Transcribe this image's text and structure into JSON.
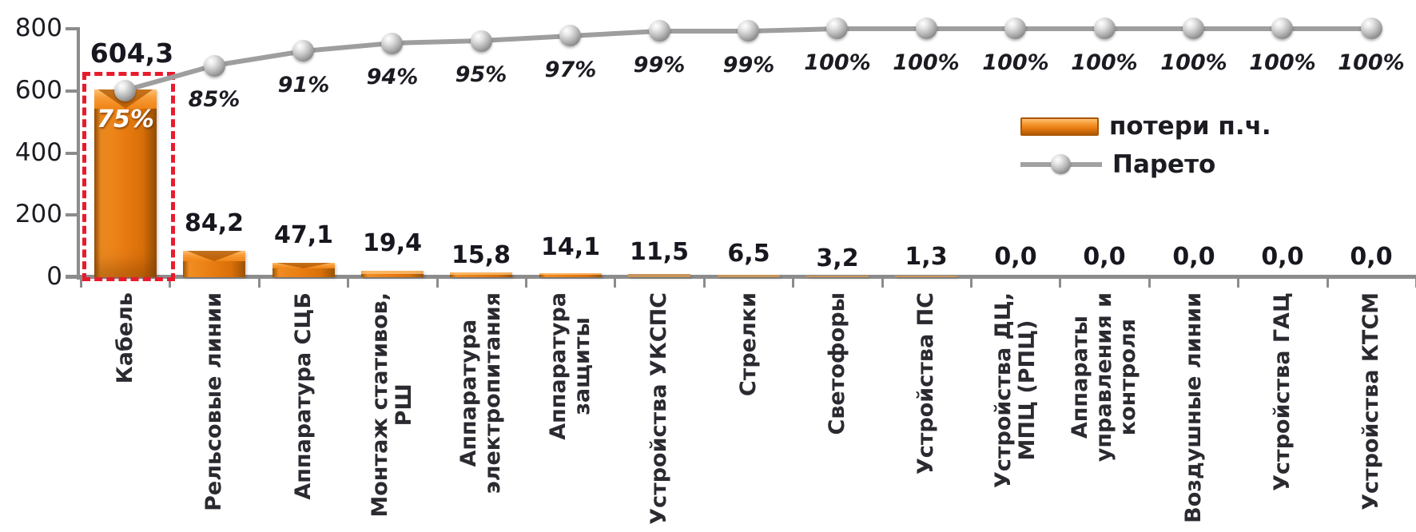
{
  "chart_data": {
    "type": "bar",
    "subtype": "pareto-combo (bars + cumulative line)",
    "title": "",
    "categories": [
      "Кабель",
      "Рельсовые линии",
      "Аппаратура СЦБ",
      "Монтаж стативов,\nРШ",
      "Аппаратура\nэлектропитания",
      "Аппаратура\nзащиты",
      "Устройства УКСПС",
      "Стрелки",
      "Светофоры",
      "Устройства  ПС",
      "Устройства ДЦ,\nМПЦ (РПЦ)",
      "Аппараты\nуправления и\nконтроля",
      "Воздушные линии",
      "Устройства ГАЦ",
      "Устройства КТСМ"
    ],
    "series": [
      {
        "name": "потери п.ч.",
        "type": "bar",
        "values": [
          604.3,
          84.2,
          47.1,
          19.4,
          15.8,
          14.1,
          11.5,
          6.5,
          3.2,
          1.3,
          0.0,
          0.0,
          0.0,
          0.0,
          0.0
        ],
        "data_labels": [
          "604,3",
          "84,2",
          "47,1",
          "19,4",
          "15,8",
          "14,1",
          "11,5",
          "6,5",
          "3,2",
          "1,3",
          "0,0",
          "0,0",
          "0,0",
          "0,0",
          "0,0"
        ]
      },
      {
        "name": "Парето",
        "type": "line",
        "values_percent": [
          75,
          85,
          91,
          94,
          95,
          97,
          99,
          99,
          100,
          100,
          100,
          100,
          100,
          100,
          100
        ],
        "data_labels": [
          "75%",
          "85%",
          "91%",
          "94%",
          "95%",
          "97%",
          "99%",
          "99%",
          "100%",
          "100%",
          "100%",
          "100%",
          "100%",
          "100%",
          "100%"
        ]
      }
    ],
    "y_axis": {
      "ticks": [
        "800",
        "600",
        "400",
        "200",
        "0"
      ],
      "values": [
        800,
        600,
        400,
        200,
        0
      ],
      "range": [
        0,
        800
      ]
    },
    "secondary_axis": {
      "range_percent": [
        0,
        100
      ],
      "visible": false
    },
    "grid": false,
    "legend": {
      "position": "upper-right-inside",
      "items": [
        {
          "label": "потери п.ч.",
          "marker": "orange-bar-swatch"
        },
        {
          "label": "Парето",
          "marker": "gray-line-with-ball-marker"
        }
      ]
    },
    "annotations": [
      {
        "type": "dashed-box",
        "target": "Кабель",
        "note": "red dashed rectangle highlighting first bar"
      },
      {
        "type": "inside-bar-label",
        "target": "Кабель",
        "text": "75%"
      }
    ],
    "colors": {
      "bar_fill": "#e87c12",
      "bar_light": "#ffb564",
      "bar_dark": "#9a5304",
      "bar_small": "#c9965a",
      "line": "#9e9e9e",
      "marker": "#b5b5b5",
      "text": "#1b1b22",
      "category_text": "#2a2a30",
      "percent_inside_bar": "#ffffff",
      "highlight_box": "#e81b2c",
      "axis": "#8c8c8c"
    }
  }
}
